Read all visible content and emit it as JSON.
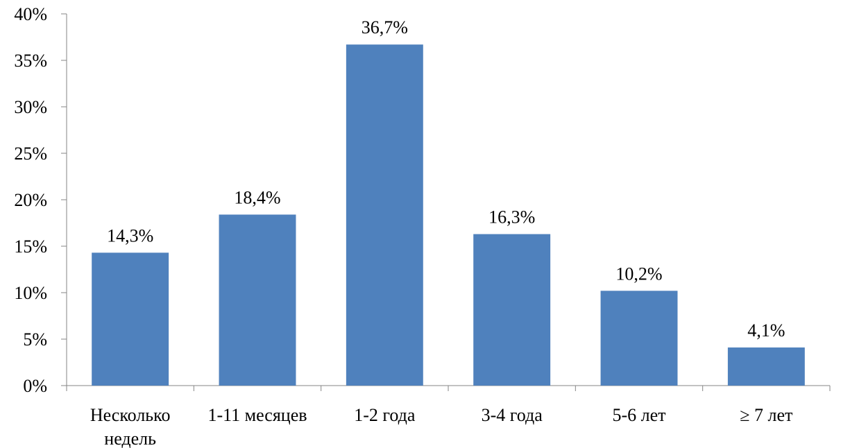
{
  "chart_data": {
    "type": "bar",
    "categories": [
      [
        "Несколько",
        "недель"
      ],
      [
        "1-11 месяцев"
      ],
      [
        "1-2 года"
      ],
      [
        "3-4 года"
      ],
      [
        "5-6 лет"
      ],
      [
        "≥ 7 лет"
      ]
    ],
    "values": [
      14.3,
      18.4,
      36.7,
      16.3,
      10.2,
      4.1
    ],
    "data_labels": [
      "14,3%",
      "18,4%",
      "36,7%",
      "16,3%",
      "10,2%",
      "4,1%"
    ],
    "y_ticks": [
      {
        "value": 0,
        "label": "0%"
      },
      {
        "value": 5,
        "label": "5%"
      },
      {
        "value": 10,
        "label": "10%"
      },
      {
        "value": 15,
        "label": "15%"
      },
      {
        "value": 20,
        "label": "20%"
      },
      {
        "value": 25,
        "label": "25%"
      },
      {
        "value": 30,
        "label": "30%"
      },
      {
        "value": 35,
        "label": "35%"
      },
      {
        "value": 40,
        "label": "40%"
      }
    ],
    "ylim": [
      0,
      40
    ],
    "grid": false,
    "legend": "none",
    "colors": {
      "bar": "#4F81BD",
      "axis": "#868686",
      "text": "#000000"
    }
  }
}
